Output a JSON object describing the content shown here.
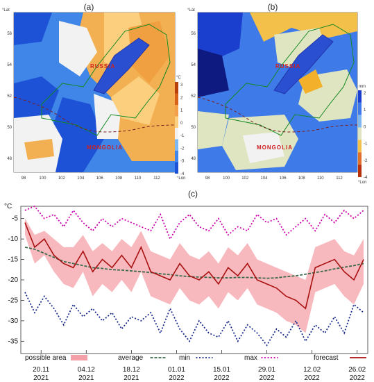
{
  "map_a": {
    "label": "(a)",
    "lat_unit": "°Lat",
    "lon_unit": "°Lon",
    "lat_ticks": [
      "56",
      "54",
      "52",
      "50",
      "48"
    ],
    "lon_ticks": [
      "98",
      "100",
      "102",
      "104",
      "106",
      "108",
      "110",
      "112"
    ],
    "country_north": "RUSSIA",
    "country_south": "MONGOLIA",
    "legend_unit": "°C",
    "legend_ticks": [
      "3",
      "2",
      "1",
      "0",
      "-1",
      "-2",
      "-3",
      "-4"
    ],
    "legend_colors": [
      "#b8400a",
      "#d9621a",
      "#f3a04a",
      "#fbcf7e",
      "#f2f2f2",
      "#7fb8f0",
      "#3f86e8",
      "#1d52d6"
    ]
  },
  "map_b": {
    "label": "(b)",
    "lat_unit": "°Lat",
    "lon_unit": "°Lon",
    "lat_ticks": [
      "56",
      "54",
      "52",
      "50",
      "48"
    ],
    "lon_ticks": [
      "98",
      "100",
      "102",
      "104",
      "106",
      "108",
      "110",
      "112"
    ],
    "country_north": "RUSSIA",
    "country_south": "MONGOLIA",
    "legend_unit": "mm",
    "legend_ticks": [
      "2",
      "1",
      "0",
      "-1",
      "-2",
      "-4"
    ],
    "legend_colors": [
      "#1a3fcf",
      "#3f7be8",
      "#7fb8f0",
      "#dfe5c0",
      "#f3c04a",
      "#e0702a",
      "#b8300a"
    ]
  },
  "chart_label": "(c)",
  "chart_data": {
    "type": "line",
    "ylabel": "°C",
    "ylim": [
      -38,
      -2
    ],
    "yticks": [
      -5,
      -10,
      -15,
      -20,
      -25,
      -30,
      -35
    ],
    "x_tick_labels": [
      {
        "date": "20.11",
        "year": "2021"
      },
      {
        "date": "04.12",
        "year": "2021"
      },
      {
        "date": "18.12",
        "year": "2021"
      },
      {
        "date": "01.01",
        "year": "2022"
      },
      {
        "date": "15.01",
        "year": "2022"
      },
      {
        "date": "29.01",
        "year": "2022"
      },
      {
        "date": "12.02",
        "year": "2022"
      },
      {
        "date": "26.02",
        "year": "2022"
      }
    ],
    "dates": [
      "2021-11-15",
      "2021-11-18",
      "2021-11-21",
      "2021-11-24",
      "2021-11-27",
      "2021-11-30",
      "2021-12-03",
      "2021-12-06",
      "2021-12-09",
      "2021-12-12",
      "2021-12-15",
      "2021-12-18",
      "2021-12-21",
      "2021-12-24",
      "2021-12-27",
      "2021-12-30",
      "2022-01-02",
      "2022-01-05",
      "2022-01-08",
      "2022-01-11",
      "2022-01-14",
      "2022-01-17",
      "2022-01-20",
      "2022-01-23",
      "2022-01-26",
      "2022-01-29",
      "2022-02-01",
      "2022-02-04",
      "2022-02-07",
      "2022-02-10",
      "2022-02-13",
      "2022-02-16",
      "2022-02-19",
      "2022-02-22",
      "2022-02-25",
      "2022-02-28"
    ],
    "series": [
      {
        "name": "max",
        "color": "#cc00aa",
        "style": "dotted",
        "values": [
          -3,
          -2,
          -5,
          -4,
          -7,
          -3,
          -6,
          -8,
          -5,
          -7,
          -5,
          -6,
          -7,
          -8,
          -4,
          -10,
          -6,
          -4,
          -7,
          -8,
          -5,
          -9,
          -7,
          -8,
          -4,
          -6,
          -5,
          -9,
          -7,
          -5,
          -8,
          -4,
          -6,
          -3,
          -5,
          -3
        ]
      },
      {
        "name": "min",
        "color": "#1a2a8a",
        "style": "dotted",
        "values": [
          -23,
          -28,
          -24,
          -27,
          -31,
          -26,
          -29,
          -27,
          -30,
          -28,
          -32,
          -29,
          -30,
          -28,
          -33,
          -27,
          -32,
          -35,
          -30,
          -33,
          -34,
          -30,
          -35,
          -31,
          -33,
          -36,
          -32,
          -34,
          -30,
          -35,
          -31,
          -33,
          -29,
          -33,
          -26,
          -28
        ]
      },
      {
        "name": "average",
        "color": "#3a6a4a",
        "style": "dashed",
        "values": [
          -12,
          -12.5,
          -13.5,
          -14.5,
          -15.5,
          -16,
          -16.5,
          -17,
          -17.2,
          -17.5,
          -17.6,
          -17.8,
          -18,
          -18.2,
          -18.5,
          -18.7,
          -19,
          -19.2,
          -19.3,
          -19.4,
          -19.5,
          -19.5,
          -19.4,
          -19.4,
          -19.5,
          -19.6,
          -19.5,
          -19.2,
          -19,
          -18.6,
          -18.2,
          -17.8,
          -17.3,
          -16.9,
          -16.5,
          -16
        ]
      },
      {
        "name": "forecast",
        "color": "#a81010",
        "style": "solid",
        "values": [
          -6,
          -12,
          -10,
          -14,
          -16,
          -17,
          -13,
          -18,
          -15,
          -17,
          -14,
          -17,
          -12,
          -18,
          -19,
          -20,
          -16,
          -19,
          -20,
          -18,
          -21,
          -17,
          -19,
          -16,
          -20,
          -21,
          -22,
          -24,
          -25,
          -27,
          -17,
          -16,
          -15,
          -18,
          -20,
          -15
        ]
      }
    ],
    "band": {
      "name": "possible area",
      "color": "#f4a0a8",
      "upper": [
        -5,
        -9,
        -8,
        -10,
        -12,
        -12,
        -9,
        -13,
        -11,
        -13,
        -10,
        -12,
        -8,
        -13,
        -14,
        -15,
        -11,
        -14,
        -15,
        -13,
        -16,
        -12,
        -14,
        -11,
        -15,
        -16,
        -17,
        -18,
        -19,
        -20,
        -12,
        -11,
        -10,
        -13,
        -14,
        -10
      ],
      "lower": [
        -9,
        -16,
        -14,
        -18,
        -21,
        -22,
        -18,
        -24,
        -21,
        -23,
        -20,
        -23,
        -18,
        -24,
        -25,
        -26,
        -22,
        -25,
        -26,
        -24,
        -27,
        -23,
        -25,
        -22,
        -26,
        -27,
        -28,
        -30,
        -31,
        -33,
        -23,
        -22,
        -21,
        -24,
        -26,
        -21
      ]
    },
    "legend": [
      {
        "label": "possible area",
        "key": "band"
      },
      {
        "label": "average",
        "key": "average"
      },
      {
        "label": "min",
        "key": "min"
      },
      {
        "label": "max",
        "key": "max"
      },
      {
        "label": "forecast",
        "key": "forecast"
      }
    ]
  }
}
